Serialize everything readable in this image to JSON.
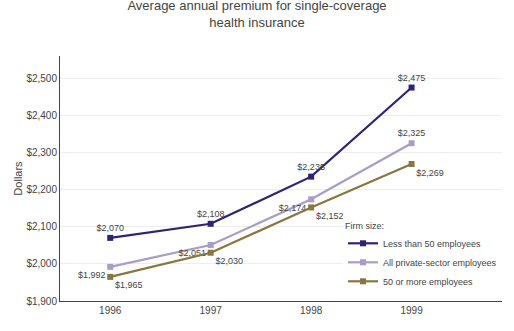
{
  "chart_data": {
    "type": "line",
    "title": "Average annual premium for single-coverage\nhealth insurance",
    "ylabel": "Dollars",
    "x": [
      1996,
      1997,
      1998,
      1999
    ],
    "series": [
      {
        "name": "Less than 50 employees",
        "color": "#2e2475",
        "marker": "square",
        "values": [
          2070,
          2108,
          2235,
          2475
        ],
        "value_labels": [
          "$2,070",
          "$2,108",
          "$2,235",
          "$2,475"
        ]
      },
      {
        "name": "All private-sector employees",
        "color": "#a89cc8",
        "marker": "square",
        "values": [
          1992,
          2051,
          2174,
          2325
        ],
        "value_labels": [
          "$1,992",
          "$2,051",
          "$2,174",
          "$2,325"
        ]
      },
      {
        "name": "50 or more employees",
        "color": "#8b7640",
        "marker": "square",
        "values": [
          1965,
          2030,
          2152,
          2269
        ],
        "value_labels": [
          "$1,965",
          "$2,030",
          "$2,152",
          "$2,269"
        ]
      }
    ],
    "data_labels": true,
    "legend_title": "Firm size:",
    "legend": "lower right",
    "grid": true,
    "xlim": [
      1995.5,
      1999.9
    ],
    "xticks": [
      1996,
      1997,
      1998,
      1999
    ],
    "ylim": [
      1900,
      2560
    ],
    "yticks": [
      {
        "value": 1900,
        "label": "$1,900"
      },
      {
        "value": 2000,
        "label": "$2,000"
      },
      {
        "value": 2100,
        "label": "$2,100"
      },
      {
        "value": 2200,
        "label": "$2,200"
      },
      {
        "value": 2300,
        "label": "$2,300"
      },
      {
        "value": 2400,
        "label": "$2,400"
      },
      {
        "value": 2500,
        "label": "$2,500"
      }
    ]
  }
}
